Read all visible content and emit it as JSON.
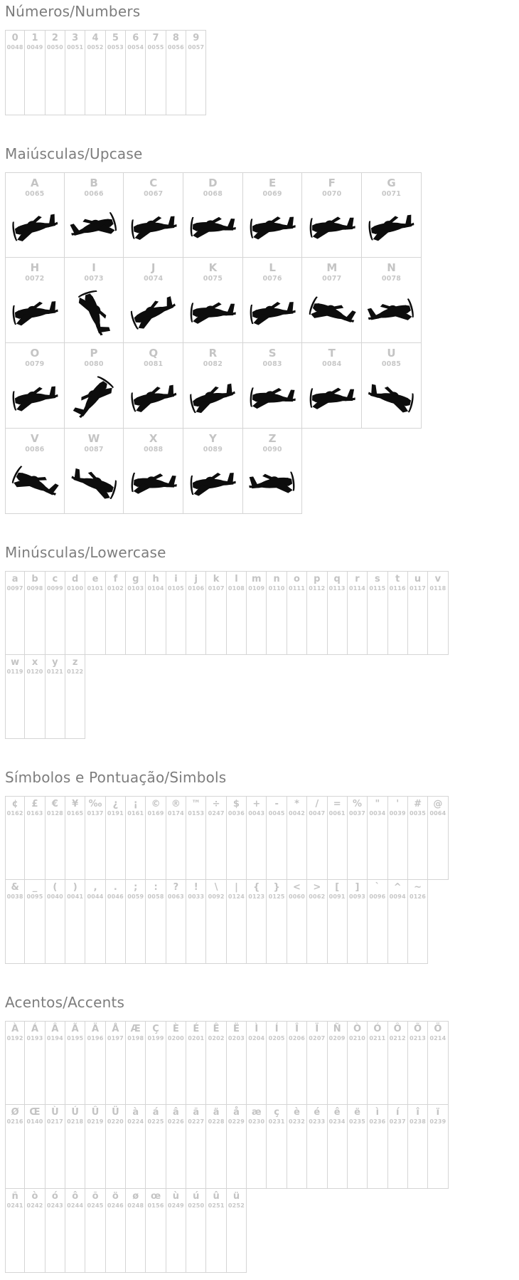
{
  "page_title": "Font character map",
  "colors": {
    "background": "#ffffff",
    "heading_text": "#7d7d7d",
    "cell_border": "#d5d5d5",
    "character_text": "#c4c4c4",
    "code_text": "#c7c7c7",
    "glyph_color": "#0d0d0d"
  },
  "sections": [
    {
      "id": "numbers",
      "title": "Números/Numbers",
      "cell_size": "small",
      "has_glyphs": false,
      "rows": [
        [
          [
            "0",
            "0048"
          ],
          [
            "1",
            "0049"
          ],
          [
            "2",
            "0050"
          ],
          [
            "3",
            "0051"
          ],
          [
            "4",
            "0052"
          ],
          [
            "5",
            "0053"
          ],
          [
            "6",
            "0054"
          ],
          [
            "7",
            "0055"
          ],
          [
            "8",
            "0056"
          ],
          [
            "9",
            "0057"
          ]
        ]
      ]
    },
    {
      "id": "uppercase",
      "title": "Maiúsculas/Upcase",
      "cell_size": "large",
      "has_glyphs": true,
      "glyph_icon": "airplane-icon",
      "rows": [
        [
          [
            "A",
            "0065"
          ],
          [
            "B",
            "0066"
          ],
          [
            "C",
            "0067"
          ],
          [
            "D",
            "0068"
          ],
          [
            "E",
            "0069"
          ],
          [
            "F",
            "0070"
          ],
          [
            "G",
            "0071"
          ]
        ],
        [
          [
            "H",
            "0072"
          ],
          [
            "I",
            "0073"
          ],
          [
            "J",
            "0074"
          ],
          [
            "K",
            "0075"
          ],
          [
            "L",
            "0076"
          ],
          [
            "M",
            "0077"
          ],
          [
            "N",
            "0078"
          ]
        ],
        [
          [
            "O",
            "0079"
          ],
          [
            "P",
            "0080"
          ],
          [
            "Q",
            "0081"
          ],
          [
            "R",
            "0082"
          ],
          [
            "S",
            "0083"
          ],
          [
            "T",
            "0084"
          ],
          [
            "U",
            "0085"
          ]
        ],
        [
          [
            "V",
            "0086"
          ],
          [
            "W",
            "0087"
          ],
          [
            "X",
            "0088"
          ],
          [
            "Y",
            "0089"
          ],
          [
            "Z",
            "0090"
          ]
        ]
      ]
    },
    {
      "id": "lowercase",
      "title": "Minúsculas/Lowercase",
      "cell_size": "small",
      "has_glyphs": false,
      "rows": [
        [
          [
            "a",
            "0097"
          ],
          [
            "b",
            "0098"
          ],
          [
            "c",
            "0099"
          ],
          [
            "d",
            "0100"
          ],
          [
            "e",
            "0101"
          ],
          [
            "f",
            "0102"
          ],
          [
            "g",
            "0103"
          ],
          [
            "h",
            "0104"
          ],
          [
            "i",
            "0105"
          ],
          [
            "j",
            "0106"
          ],
          [
            "k",
            "0107"
          ],
          [
            "l",
            "0108"
          ],
          [
            "m",
            "0109"
          ],
          [
            "n",
            "0110"
          ],
          [
            "o",
            "0111"
          ],
          [
            "p",
            "0112"
          ],
          [
            "q",
            "0113"
          ],
          [
            "r",
            "0114"
          ],
          [
            "s",
            "0115"
          ],
          [
            "t",
            "0116"
          ],
          [
            "u",
            "0117"
          ],
          [
            "v",
            "0118"
          ]
        ],
        [
          [
            "w",
            "0119"
          ],
          [
            "x",
            "0120"
          ],
          [
            "y",
            "0121"
          ],
          [
            "z",
            "0122"
          ]
        ]
      ]
    },
    {
      "id": "symbols",
      "title": "Símbolos e Pontuação/Simbols",
      "cell_size": "small",
      "has_glyphs": false,
      "rows": [
        [
          [
            "¢",
            "0162"
          ],
          [
            "£",
            "0163"
          ],
          [
            "€",
            "0128"
          ],
          [
            "¥",
            "0165"
          ],
          [
            "‰",
            "0137"
          ],
          [
            "¿",
            "0191"
          ],
          [
            "¡",
            "0161"
          ],
          [
            "©",
            "0169"
          ],
          [
            "®",
            "0174"
          ],
          [
            "™",
            "0153"
          ],
          [
            "÷",
            "0247"
          ],
          [
            "$",
            "0036"
          ],
          [
            "+",
            "0043"
          ],
          [
            "-",
            "0045"
          ],
          [
            "*",
            "0042"
          ],
          [
            "/",
            "0047"
          ],
          [
            "=",
            "0061"
          ],
          [
            "%",
            "0037"
          ],
          [
            "\"",
            "0034"
          ],
          [
            "'",
            "0039"
          ],
          [
            "#",
            "0035"
          ],
          [
            "@",
            "0064"
          ]
        ],
        [
          [
            "&",
            "0038"
          ],
          [
            "_",
            "0095"
          ],
          [
            "(",
            "0040"
          ],
          [
            ")",
            "0041"
          ],
          [
            ",",
            "0044"
          ],
          [
            ".",
            "0046"
          ],
          [
            ";",
            "0059"
          ],
          [
            ":",
            "0058"
          ],
          [
            "?",
            "0063"
          ],
          [
            "!",
            "0033"
          ],
          [
            "\\",
            "0092"
          ],
          [
            "|",
            "0124"
          ],
          [
            "{",
            "0123"
          ],
          [
            "}",
            "0125"
          ],
          [
            "<",
            "0060"
          ],
          [
            ">",
            "0062"
          ],
          [
            "[",
            "0091"
          ],
          [
            "]",
            "0093"
          ],
          [
            "`",
            "0096"
          ],
          [
            "^",
            "0094"
          ],
          [
            "~",
            "0126"
          ]
        ]
      ]
    },
    {
      "id": "accents",
      "title": "Acentos/Accents",
      "cell_size": "small",
      "has_glyphs": false,
      "rows": [
        [
          [
            "À",
            "0192"
          ],
          [
            "Á",
            "0193"
          ],
          [
            "Â",
            "0194"
          ],
          [
            "Ã",
            "0195"
          ],
          [
            "Ä",
            "0196"
          ],
          [
            "Å",
            "0197"
          ],
          [
            "Æ",
            "0198"
          ],
          [
            "Ç",
            "0199"
          ],
          [
            "È",
            "0200"
          ],
          [
            "É",
            "0201"
          ],
          [
            "Ê",
            "0202"
          ],
          [
            "Ë",
            "0203"
          ],
          [
            "Ì",
            "0204"
          ],
          [
            "Í",
            "0205"
          ],
          [
            "Î",
            "0206"
          ],
          [
            "Ï",
            "0207"
          ],
          [
            "Ñ",
            "0209"
          ],
          [
            "Ò",
            "0210"
          ],
          [
            "Ó",
            "0211"
          ],
          [
            "Ô",
            "0212"
          ],
          [
            "Õ",
            "0213"
          ],
          [
            "Ö",
            "0214"
          ]
        ],
        [
          [
            "Ø",
            "0216"
          ],
          [
            "Œ",
            "0140"
          ],
          [
            "Ù",
            "0217"
          ],
          [
            "Ú",
            "0218"
          ],
          [
            "Û",
            "0219"
          ],
          [
            "Ü",
            "0220"
          ],
          [
            "à",
            "0224"
          ],
          [
            "á",
            "0225"
          ],
          [
            "â",
            "0226"
          ],
          [
            "ã",
            "0227"
          ],
          [
            "ä",
            "0228"
          ],
          [
            "å",
            "0229"
          ],
          [
            "æ",
            "0230"
          ],
          [
            "ç",
            "0231"
          ],
          [
            "è",
            "0232"
          ],
          [
            "é",
            "0233"
          ],
          [
            "ê",
            "0234"
          ],
          [
            "ë",
            "0235"
          ],
          [
            "ì",
            "0236"
          ],
          [
            "í",
            "0237"
          ],
          [
            "î",
            "0238"
          ],
          [
            "ï",
            "0239"
          ]
        ],
        [
          [
            "ñ",
            "0241"
          ],
          [
            "ò",
            "0242"
          ],
          [
            "ó",
            "0243"
          ],
          [
            "ô",
            "0244"
          ],
          [
            "õ",
            "0245"
          ],
          [
            "ö",
            "0246"
          ],
          [
            "ø",
            "0248"
          ],
          [
            "œ",
            "0156"
          ],
          [
            "ù",
            "0249"
          ],
          [
            "ú",
            "0250"
          ],
          [
            "û",
            "0251"
          ],
          [
            "ü",
            "0252"
          ]
        ]
      ]
    }
  ]
}
